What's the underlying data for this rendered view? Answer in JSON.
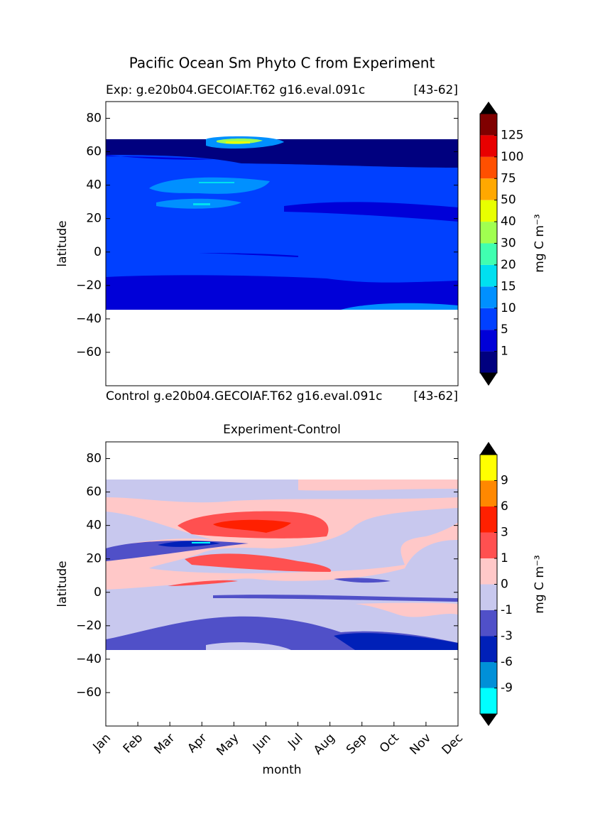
{
  "chart_data": [
    {
      "type": "contour",
      "title": "Pacific Ocean Sm Phyto C from Experiment",
      "subtitle_left": "Exp:    g.e20b04.GECOIAF.T62 g16.eval.091c",
      "subtitle_right": "[43-62]",
      "control_label": "Control",
      "control_run": "g.e20b04.GECOIAF.T62 g16.eval.091c",
      "control_range": "[43-62]",
      "ylabel": "latitude",
      "ylim": [
        -80,
        90
      ],
      "yticks": [
        {
          "value": -60,
          "label": "−60"
        },
        {
          "value": -40,
          "label": "−40"
        },
        {
          "value": -20,
          "label": "−20"
        },
        0,
        20,
        40,
        60,
        80
      ],
      "colorbar": {
        "label": "mg C m⁻³",
        "levels": [
          1,
          5,
          10,
          15,
          20,
          30,
          40,
          50,
          75,
          100,
          125
        ],
        "colors": [
          "#00007f",
          "#0000d8",
          "#0040ff",
          "#0090ff",
          "#00e0f0",
          "#40ffb0",
          "#a0ff50",
          "#e8ff00",
          "#ffa800",
          "#ff5000",
          "#e80000",
          "#800000"
        ]
      }
    },
    {
      "type": "contour",
      "title": "Experiment-Control",
      "xlabel": "month",
      "ylabel": "latitude",
      "categories": [
        "Jan",
        "Feb",
        "Mar",
        "Apr",
        "May",
        "Jun",
        "Jul",
        "Aug",
        "Sep",
        "Oct",
        "Nov",
        "Dec"
      ],
      "ylim": [
        -80,
        90
      ],
      "yticks": [
        {
          "value": -60,
          "label": "−60"
        },
        {
          "value": -40,
          "label": "−40"
        },
        {
          "value": -20,
          "label": "−20"
        },
        0,
        20,
        40,
        60,
        80
      ],
      "colorbar": {
        "label": "mg C m⁻³",
        "levels": [
          -9,
          -6,
          -3,
          -1,
          0,
          1,
          3,
          6,
          9
        ],
        "colors": [
          "#00ffff",
          "#0090d8",
          "#0020b8",
          "#5050c8",
          "#c8c8ee",
          "#ffc8c8",
          "#ff5050",
          "#ff2000",
          "#ff8800",
          "#ffff00"
        ]
      }
    }
  ]
}
